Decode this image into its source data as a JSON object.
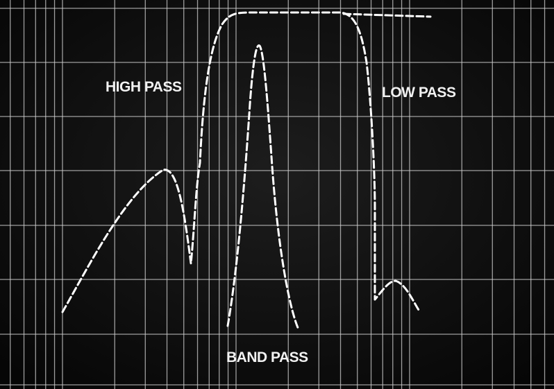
{
  "labels": {
    "high_pass": "HIGH PASS",
    "low_pass": "LOW PASS",
    "band_pass": "BAND PASS"
  }
}
